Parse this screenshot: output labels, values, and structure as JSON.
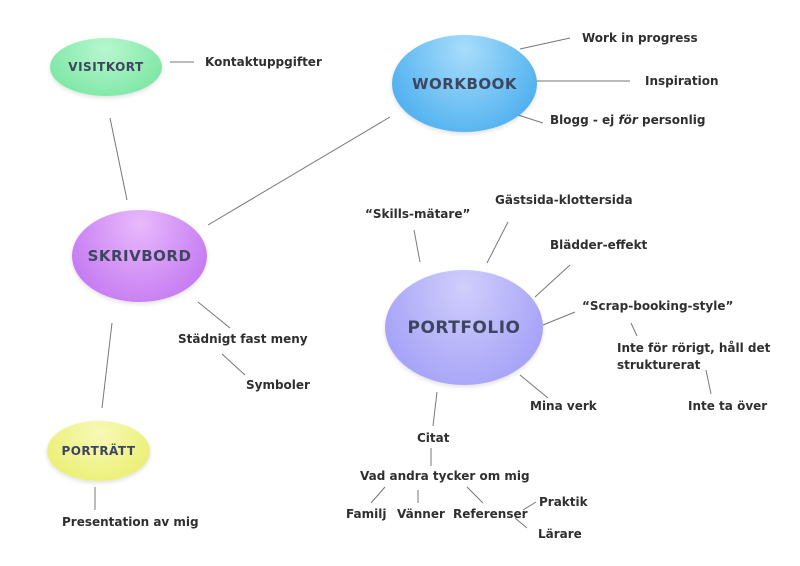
{
  "colors": {
    "visitkort": "#7ee8a8",
    "workbook": "#53b4ee",
    "skrivbord": "#cc7cf2",
    "portfolio": "#a9a6f8",
    "portratt": "#eef27a",
    "line": "#777777"
  },
  "nodes": {
    "visitkort": "VISITKORT",
    "workbook": "WORKBOOK",
    "skrivbord": "SKRIVBORD",
    "portfolio": "PORTFOLIO",
    "portratt": "PORTRÄTT"
  },
  "labels": {
    "kontaktuppgifter": "Kontaktuppgifter",
    "work_in_progress": "Work in progress",
    "inspiration": "Inspiration",
    "blogg_pre": "Blogg - ej ",
    "blogg_italic": "för",
    "blogg_post": " personlig",
    "skills": "“Skills-mätare”",
    "gastsida": "Gästsida-klottersida",
    "bladder": "Blädder-effekt",
    "scrap": "“Scrap-booking-style”",
    "inte_rorigt": "Inte för rörigt, håll det strukturerat",
    "inte_ta_over": "Inte ta över",
    "mina_verk": "Mina verk",
    "citat": "Citat",
    "vad_andra": "Vad andra tycker om mig",
    "familj": "Familj",
    "vanner": "Vänner",
    "referenser": "Referenser",
    "praktik": "Praktik",
    "larare": "Lärare",
    "stadnigt": "Städnigt fast meny",
    "symboler": "Symboler",
    "presentation": "Presentation av mig"
  }
}
